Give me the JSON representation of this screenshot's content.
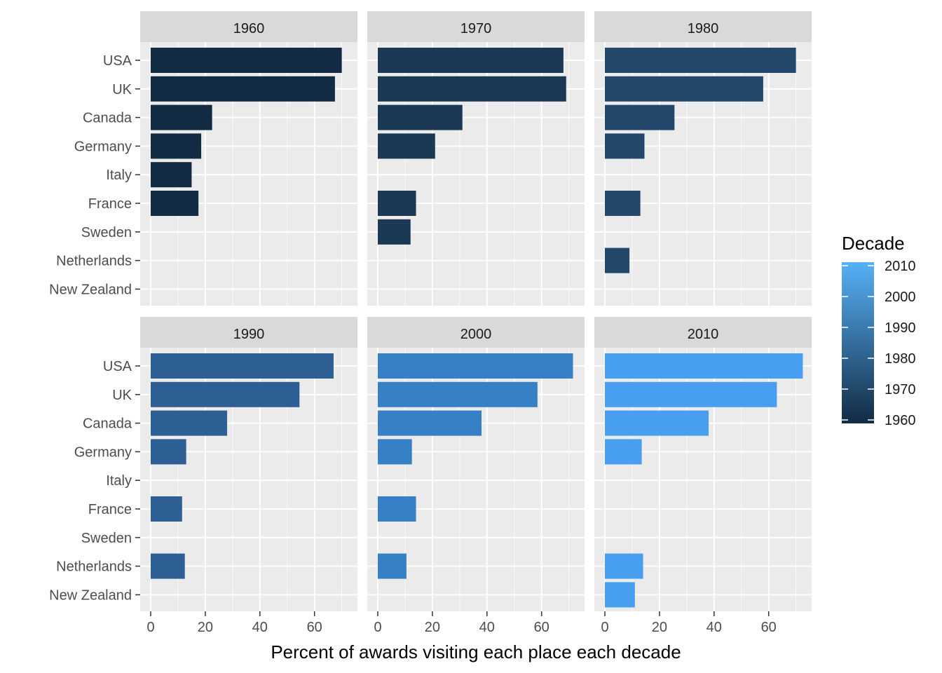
{
  "chart_data": {
    "type": "bar",
    "orientation": "horizontal",
    "facet_by": "decade",
    "categories": [
      "USA",
      "UK",
      "Canada",
      "Germany",
      "Italy",
      "France",
      "Sweden",
      "Netherlands",
      "New Zealand"
    ],
    "xlabel": "Percent of awards visiting each place each decade",
    "ylabel": "",
    "xlim": [
      0,
      74
    ],
    "xticks": [
      0,
      20,
      40,
      60
    ],
    "grid": true,
    "legend": {
      "title": "Decade",
      "placement": "right",
      "type": "colorbar",
      "ticks": [
        1960,
        1970,
        1980,
        1990,
        2000,
        2010
      ],
      "low_color": "#132B43",
      "high_color": "#56B1F7"
    },
    "colors": {
      "1960": "#132B43",
      "1970": "#1B3854",
      "1980": "#24486B",
      "1990": "#2D5F95",
      "2000": "#3680C6",
      "2010": "#489FF2"
    },
    "panels": [
      {
        "label": "1960",
        "values": [
          70,
          67.5,
          22.5,
          18.5,
          15,
          17.5,
          null,
          null,
          null
        ]
      },
      {
        "label": "1970",
        "values": [
          68,
          69,
          31,
          21,
          null,
          14,
          12,
          null,
          null
        ]
      },
      {
        "label": "1980",
        "values": [
          70,
          58,
          25.5,
          14.5,
          null,
          13,
          null,
          9,
          null
        ]
      },
      {
        "label": "1990",
        "values": [
          67,
          54.5,
          28,
          13,
          null,
          11.5,
          null,
          12.5,
          null
        ]
      },
      {
        "label": "2000",
        "values": [
          71.5,
          58.5,
          38,
          12.5,
          null,
          14,
          null,
          10.5,
          null
        ]
      },
      {
        "label": "2010",
        "values": [
          72.5,
          63,
          38,
          13.5,
          null,
          null,
          null,
          14,
          11
        ]
      }
    ]
  }
}
